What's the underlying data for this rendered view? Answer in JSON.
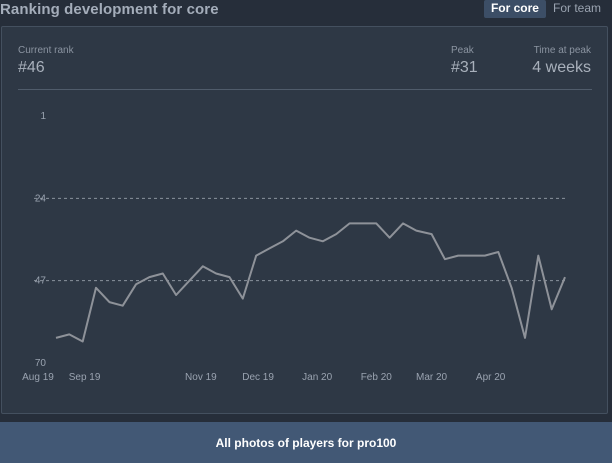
{
  "header": {
    "title": "Ranking development for core",
    "tabs": [
      {
        "label": "For core",
        "active": true
      },
      {
        "label": "For team",
        "active": false
      }
    ]
  },
  "stats": {
    "current_rank_label": "Current rank",
    "current_rank_value": "#46",
    "peak_label": "Peak",
    "peak_value": "#31",
    "time_at_peak_label": "Time at peak",
    "time_at_peak_value": "4 weeks"
  },
  "chart_data": {
    "type": "line",
    "title": "",
    "xlabel": "",
    "ylabel": "",
    "y_axis_inverted": true,
    "ylim": [
      1,
      70
    ],
    "y_ticks": [
      "1",
      "24",
      "47",
      "70"
    ],
    "dashed_gridlines_at": [
      24,
      47
    ],
    "x_tick_labels": [
      "Aug 19",
      "Sep 19",
      "Nov 19",
      "Dec 19",
      "Jan 20",
      "Feb 20",
      "Mar 20",
      "Apr 20"
    ],
    "x_dates": [
      "2019-08-17",
      "2019-08-24",
      "2019-08-31",
      "2019-09-07",
      "2019-09-14",
      "2019-09-21",
      "2019-09-28",
      "2019-10-05",
      "2019-10-12",
      "2019-10-19",
      "2019-10-26",
      "2019-11-02",
      "2019-11-09",
      "2019-11-16",
      "2019-11-23",
      "2019-11-30",
      "2019-12-07",
      "2019-12-14",
      "2019-12-21",
      "2019-12-28",
      "2020-01-04",
      "2020-01-11",
      "2020-01-18",
      "2020-01-25",
      "2020-02-01",
      "2020-02-08",
      "2020-02-15",
      "2020-02-22",
      "2020-03-01",
      "2020-03-08",
      "2020-03-15",
      "2020-03-22",
      "2020-03-29",
      "2020-04-05",
      "2020-04-12",
      "2020-04-19",
      "2020-04-26",
      "2020-05-03",
      "2020-05-10"
    ],
    "series": [
      {
        "values": [
          63,
          62,
          64,
          49,
          53,
          54,
          48,
          46,
          45,
          51,
          47,
          43,
          45,
          46,
          52,
          40,
          38,
          36,
          33,
          35,
          36,
          34,
          31,
          31,
          31,
          35,
          31,
          33,
          34,
          41,
          40,
          40,
          40,
          39,
          49,
          63,
          40,
          55,
          46
        ]
      }
    ],
    "line_color": "#8e9299",
    "grid": false
  },
  "footer": {
    "button_label": "All photos of players for pro100"
  }
}
